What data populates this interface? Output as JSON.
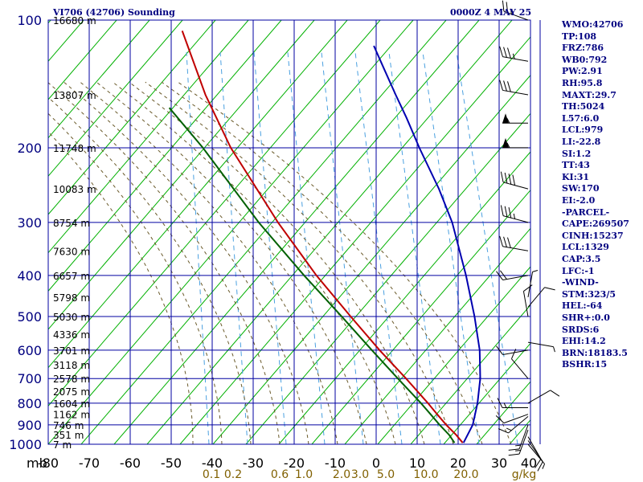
{
  "header": {
    "station": "VI706 (42706) Sounding",
    "datetime": "0000Z  4 MAY 25"
  },
  "stats": [
    "WMO:42706",
    "TP:108",
    "FRZ:786",
    "WB0:792",
    "PW:2.91",
    "RH:95.8",
    "MAXT:29.7",
    "TH:5024",
    "L57:6.0",
    "LCL:979",
    "LI:-22.8",
    "SI:1.2",
    "TT:43",
    "KI:31",
    "SW:170",
    "EI:-2.0",
    "-PARCEL-",
    "CAPE:269507",
    "CINH:15237",
    "LCL:1329",
    "CAP:3.5",
    "LFC:-1",
    "-WIND-",
    "STM:323/5",
    "HEL:-64",
    "SHR+:0.0",
    "SRDS:6",
    "EHI:14.2",
    "BRN:18183.5",
    "BSHR:15"
  ],
  "colors": {
    "grid": "#0000a0",
    "isotherm_dry": "#00b000",
    "moist_adiabat": "#6a5a2a",
    "mixing_ratio": "#4aa0e0",
    "temperature": "#c00000",
    "dewpoint": "#006000",
    "parcel": "#0000b0",
    "wind": "#000000"
  },
  "chart_data": {
    "type": "skew-t",
    "pressure_unit": "mb",
    "temperature_unit": "C",
    "mixing_ratio_unit": "g/kg",
    "pressure_levels": [
      100,
      200,
      300,
      400,
      500,
      600,
      700,
      800,
      900,
      1000
    ],
    "pressure_tick_labels": [
      "100",
      "200",
      "300",
      "400",
      "500",
      "600",
      "700",
      "800",
      "900",
      "1000"
    ],
    "temperature_ticks": [
      -80,
      -70,
      -60,
      -50,
      -40,
      -30,
      -20,
      -10,
      0,
      10,
      20,
      30,
      40
    ],
    "temperature_tick_labels": [
      "-80",
      "-70",
      "-60",
      "-50",
      "-40",
      "-30",
      "-20",
      "-10",
      "0",
      "10",
      "20",
      "30",
      "40"
    ],
    "mixing_ratio_ticks": [
      0.1,
      0.2,
      0.6,
      1.0,
      2.0,
      3.0,
      5.0,
      10.0,
      20.0
    ],
    "mixing_ratio_tick_labels": [
      "0.1",
      "0.2",
      "0.6",
      "1.0",
      "2.0",
      "3.0",
      "5.0",
      "10.0",
      "20.0"
    ],
    "mixing_ratio_unit_label": "g/kg",
    "heights": [
      {
        "p": 100,
        "label": "16680 m"
      },
      {
        "p": 150,
        "label": "13807 m"
      },
      {
        "p": 200,
        "label": "11748 m"
      },
      {
        "p": 250,
        "label": "10083 m"
      },
      {
        "p": 300,
        "label": "8754 m"
      },
      {
        "p": 350,
        "label": "7630 m"
      },
      {
        "p": 400,
        "label": "6657 m"
      },
      {
        "p": 450,
        "label": "5798 m"
      },
      {
        "p": 500,
        "label": "5030 m"
      },
      {
        "p": 550,
        "label": "4336 m"
      },
      {
        "p": 600,
        "label": "3701 m"
      },
      {
        "p": 650,
        "label": "3118 m"
      },
      {
        "p": 700,
        "label": "2578 m"
      },
      {
        "p": 750,
        "label": "2075 m"
      },
      {
        "p": 800,
        "label": "1604 m"
      },
      {
        "p": 850,
        "label": "1162 m"
      },
      {
        "p": 900,
        "label": "746 m"
      },
      {
        "p": 950,
        "label": "351 m"
      },
      {
        "p": 1000,
        "label": "7 m"
      }
    ],
    "series": [
      {
        "key": "temperature",
        "points": [
          {
            "p": 992,
            "t": 20.8
          },
          {
            "p": 950,
            "t": 17.5
          },
          {
            "p": 900,
            "t": 13.0
          },
          {
            "p": 850,
            "t": 8.6
          },
          {
            "p": 800,
            "t": 4.0
          },
          {
            "p": 700,
            "t": -6.5
          },
          {
            "p": 600,
            "t": -18.9
          },
          {
            "p": 500,
            "t": -33.0
          },
          {
            "p": 400,
            "t": -50.0
          },
          {
            "p": 300,
            "t": -70.5
          },
          {
            "p": 200,
            "t": -97.7
          },
          {
            "p": 150,
            "t": -115.0
          },
          {
            "p": 106,
            "t": -134.1
          }
        ]
      },
      {
        "key": "dewpoint",
        "points": [
          {
            "p": 992,
            "t": 18.8
          },
          {
            "p": 950,
            "t": 15.8
          },
          {
            "p": 900,
            "t": 11.4
          },
          {
            "p": 850,
            "t": 7.0
          },
          {
            "p": 800,
            "t": 2.3
          },
          {
            "p": 700,
            "t": -8.5
          },
          {
            "p": 600,
            "t": -20.8
          },
          {
            "p": 500,
            "t": -35.2
          },
          {
            "p": 400,
            "t": -53.0
          },
          {
            "p": 300,
            "t": -75.2
          },
          {
            "p": 200,
            "t": -104.5
          },
          {
            "p": 161,
            "t": -121.1
          }
        ]
      },
      {
        "key": "parcel",
        "points": [
          {
            "p": 992,
            "t": 21.0
          },
          {
            "p": 900,
            "t": 19.5
          },
          {
            "p": 800,
            "t": 16.1
          },
          {
            "p": 700,
            "t": 11.6
          },
          {
            "p": 600,
            "t": 5.5
          },
          {
            "p": 500,
            "t": -2.8
          },
          {
            "p": 400,
            "t": -13.5
          },
          {
            "p": 300,
            "t": -28.0
          },
          {
            "p": 250,
            "t": -38.3
          },
          {
            "p": 200,
            "t": -51.7
          },
          {
            "p": 170,
            "t": -61.1
          },
          {
            "p": 150,
            "t": -68.6
          },
          {
            "p": 130,
            "t": -77.0
          },
          {
            "p": 115,
            "t": -84.2
          }
        ]
      }
    ],
    "winds": [
      {
        "p": 1000,
        "dir": 140,
        "spd": 5
      },
      {
        "p": 980,
        "dir": 145,
        "spd": 10
      },
      {
        "p": 960,
        "dir": 150,
        "spd": 10
      },
      {
        "p": 925,
        "dir": 200,
        "spd": 15
      },
      {
        "p": 900,
        "dir": 200,
        "spd": 15
      },
      {
        "p": 860,
        "dir": 230,
        "spd": 15
      },
      {
        "p": 850,
        "dir": 250,
        "spd": 10
      },
      {
        "p": 820,
        "dir": 270,
        "spd": 15
      },
      {
        "p": 800,
        "dir": 60,
        "spd": 10
      },
      {
        "p": 700,
        "dir": 320,
        "spd": 10
      },
      {
        "p": 600,
        "dir": 260,
        "spd": 10
      },
      {
        "p": 575,
        "dir": 100,
        "spd": 5
      },
      {
        "p": 500,
        "dir": 350,
        "spd": 10
      },
      {
        "p": 475,
        "dir": 40,
        "spd": 10
      },
      {
        "p": 450,
        "dir": 10,
        "spd": 5
      },
      {
        "p": 400,
        "dir": 260,
        "spd": 20
      },
      {
        "p": 350,
        "dir": 280,
        "spd": 30
      },
      {
        "p": 300,
        "dir": 285,
        "spd": 35
      },
      {
        "p": 250,
        "dir": 285,
        "spd": 40
      },
      {
        "p": 200,
        "dir": 270,
        "spd": 55
      },
      {
        "p": 175,
        "dir": 270,
        "spd": 55
      },
      {
        "p": 150,
        "dir": 280,
        "spd": 30
      },
      {
        "p": 125,
        "dir": 280,
        "spd": 35
      },
      {
        "p": 100,
        "dir": 290,
        "spd": 25
      }
    ]
  }
}
